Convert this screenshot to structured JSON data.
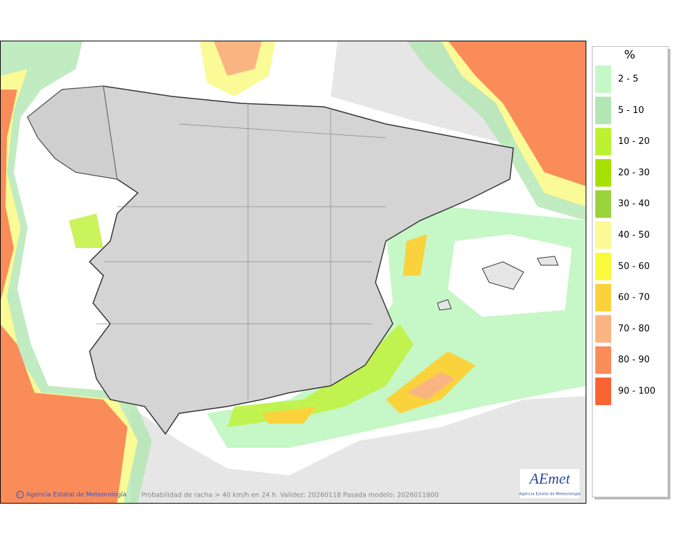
{
  "legend": {
    "title": "%",
    "items": [
      {
        "label": "2 - 5",
        "color": "#c6f7c6"
      },
      {
        "label": "5 - 10",
        "color": "#b2e6b2"
      },
      {
        "label": "10 - 20",
        "color": "#bef032"
      },
      {
        "label": "20 - 30",
        "color": "#a6e000"
      },
      {
        "label": "30 - 40",
        "color": "#9ad23c"
      },
      {
        "label": "40 - 50",
        "color": "#fafa96"
      },
      {
        "label": "50 - 60",
        "color": "#fafa3c"
      },
      {
        "label": "60 - 70",
        "color": "#fad23c"
      },
      {
        "label": "70 - 80",
        "color": "#fab482"
      },
      {
        "label": "80 - 90",
        "color": "#fa8c5a"
      },
      {
        "label": "90 - 100",
        "color": "#fa6432"
      }
    ]
  },
  "footer": {
    "credit": "Agencia Estatal de Meteorología",
    "caption": "Probabilidad de racha > 40 km/h en 24 h. Validez: 20260118 Pasada modelo: 2026011800"
  },
  "logo": {
    "text": "AEmet",
    "subtitle": "Agencia Estatal de Meteorología"
  }
}
